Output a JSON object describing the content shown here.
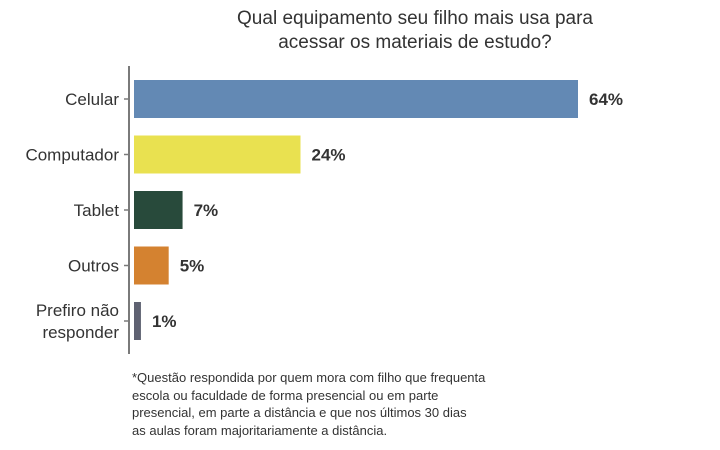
{
  "chart_data": {
    "type": "bar",
    "orientation": "horizontal",
    "title_lines": [
      "Qual equipamento seu filho mais usa para",
      "acessar os materiais de estudo?"
    ],
    "categories": [
      "Celular",
      "Computador",
      "Tablet",
      "Outros",
      "Prefiro não responder"
    ],
    "category_label_lines": [
      [
        "Celular"
      ],
      [
        "Computador"
      ],
      [
        "Tablet"
      ],
      [
        "Outros"
      ],
      [
        "Prefiro não",
        "responder"
      ]
    ],
    "values": [
      64,
      24,
      7,
      5,
      1
    ],
    "value_labels": [
      "64%",
      "24%",
      "7%",
      "5%",
      "1%"
    ],
    "colors": [
      "#6389b4",
      "#e9e150",
      "#284a3b",
      "#d48230",
      "#5f6272"
    ],
    "xlim": [
      0,
      64
    ],
    "grid": false,
    "legend": "none"
  },
  "footnote_lines": [
    "*Questão respondida por quem mora com filho que frequenta",
    "escola ou faculdade de forma presencial ou em parte",
    "presencial, em parte a distância e que nos últimos 30 dias",
    "as aulas foram majoritariamente a distância."
  ]
}
